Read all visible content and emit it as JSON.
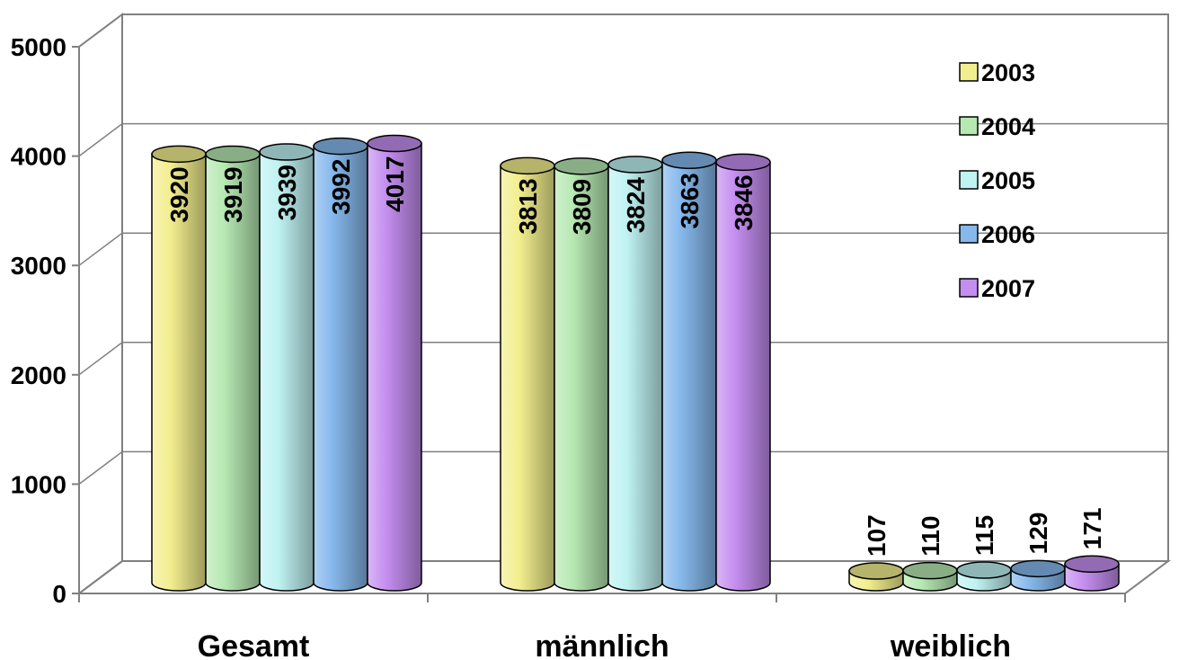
{
  "chart_data": {
    "type": "bar",
    "categories": [
      "Gesamt",
      "männlich",
      "weiblich"
    ],
    "series": [
      {
        "name": "2003",
        "values": [
          3920,
          3813,
          107
        ],
        "color": "#f2ee8e"
      },
      {
        "name": "2004",
        "values": [
          3919,
          3809,
          110
        ],
        "color": "#b6e8b2"
      },
      {
        "name": "2005",
        "values": [
          3939,
          3824,
          115
        ],
        "color": "#bff2f2"
      },
      {
        "name": "2006",
        "values": [
          3992,
          3863,
          129
        ],
        "color": "#86b8ec"
      },
      {
        "name": "2007",
        "values": [
          4017,
          3846,
          171
        ],
        "color": "#c48ef0"
      }
    ],
    "y_ticks": [
      "0",
      "1000",
      "2000",
      "3000",
      "4000",
      "5000"
    ],
    "ylim": [
      0,
      5000
    ],
    "title": "",
    "xlabel": "",
    "ylabel": "",
    "grid": true,
    "legend_position": "top-right",
    "style": "3d-cylinder"
  }
}
